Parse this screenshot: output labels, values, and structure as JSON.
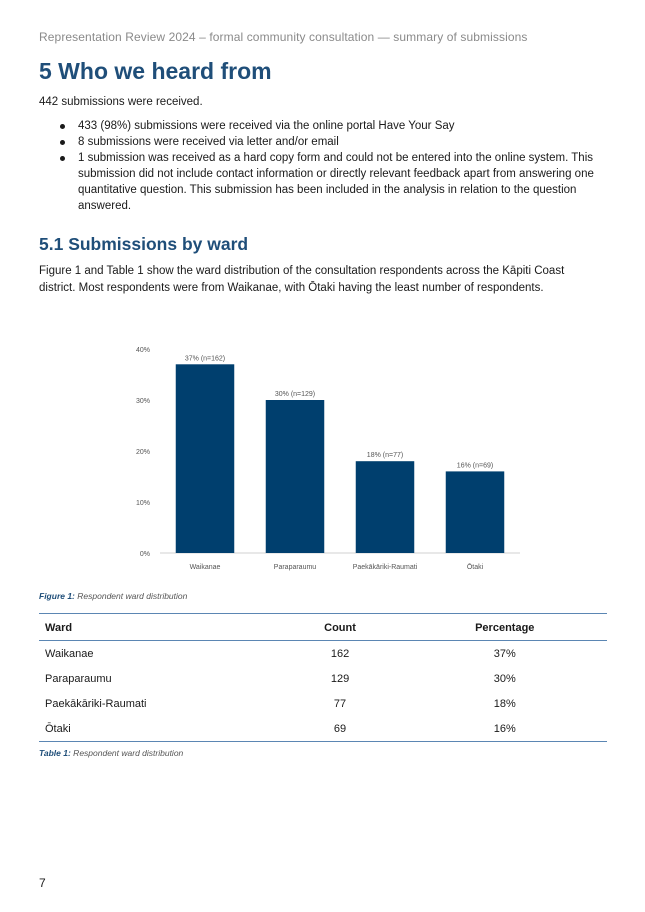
{
  "running_header": "Representation Review 2024 – formal community consultation — summary of submissions",
  "section": {
    "title": "5  Who we heard from",
    "intro": "442 submissions were received.",
    "bullets": [
      "433 (98%) submissions were received via the online portal Have Your Say",
      "8 submissions were received via letter and/or email",
      "1 submission was received as a hard copy form and could not be entered into the online system. This submission did not include contact information or directly relevant feedback apart from answering one quantitative question. This submission has been included in the analysis in relation to the question answered."
    ]
  },
  "subsection": {
    "title": "5.1 Submissions by ward",
    "paragraph": "Figure 1 and Table 1 show the ward distribution of the consultation respondents across the Kāpiti Coast district. Most respondents were from Waikanae, with Ōtaki having the least number of respondents."
  },
  "chart_data": {
    "type": "bar",
    "categories": [
      "Waikanae",
      "Paraparaumu",
      "Paekākāriki-Raumati",
      "Ōtaki"
    ],
    "values": [
      37,
      30,
      18,
      16
    ],
    "data_labels": [
      "37% (n=162)",
      "30% (n=129)",
      "18% (n=77)",
      "16% (n=69)"
    ],
    "y_ticks": [
      "0%",
      "10%",
      "20%",
      "30%",
      "40%"
    ],
    "ylim": [
      0,
      40
    ],
    "bar_color": "#003f6e",
    "grid": false,
    "legend": "none",
    "title": "",
    "xlabel": "",
    "ylabel": ""
  },
  "figure_caption": {
    "label": "Figure 1:",
    "text": " Respondent ward distribution"
  },
  "table": {
    "headers": [
      "Ward",
      "Count",
      "Percentage"
    ],
    "rows": [
      [
        "Waikanae",
        "162",
        "37%"
      ],
      [
        "Paraparaumu",
        "129",
        "30%"
      ],
      [
        "Paekākāriki-Raumati",
        "77",
        "18%"
      ],
      [
        "Ōtaki",
        "69",
        "16%"
      ]
    ]
  },
  "table_caption": {
    "label": "Table 1:",
    "text": " Respondent ward distribution"
  },
  "page_number": "7",
  "colors": {
    "heading": "#1f4e79",
    "bar": "#003f6e",
    "rule": "#5b86b3"
  }
}
